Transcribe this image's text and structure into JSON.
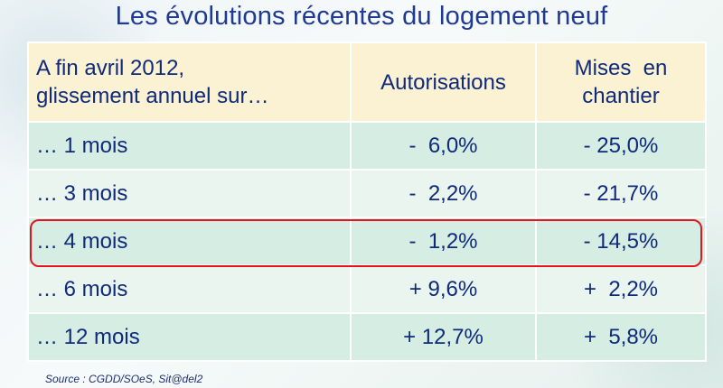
{
  "title": "Les évolutions récentes du logement neuf",
  "table": {
    "header": {
      "label_line1": "A fin avril 2012,",
      "label_line2": "glissement annuel sur…",
      "col_auth": "Autorisations",
      "col_mises_line1": "Mises  en",
      "col_mises_line2": "chantier"
    },
    "rows": [
      {
        "label": "… 1 mois",
        "auth": "-  6,0%",
        "mises": "- 25,0%"
      },
      {
        "label": "… 3 mois",
        "auth": "-  2,2%",
        "mises": "- 21,7%"
      },
      {
        "label": "… 4 mois",
        "auth": "-  1,2%",
        "mises": "- 14,5%"
      },
      {
        "label": "… 6 mois",
        "auth": "+ 9,6%",
        "mises": "+  2,2%"
      },
      {
        "label": "… 12 mois",
        "auth": "+ 12,7%",
        "mises": "+  5,8%"
      }
    ],
    "highlighted_row": "… 4 mois",
    "colors": {
      "header_bg": "#fbf1d3",
      "row_dark": "#d6ede3",
      "row_light": "#ebf5ef",
      "text": "#0f2a7a",
      "title": "#1f3a93",
      "highlight_border": "#e3151c"
    }
  },
  "source": "Source : CGDD/SOeS, Sit@del2"
}
